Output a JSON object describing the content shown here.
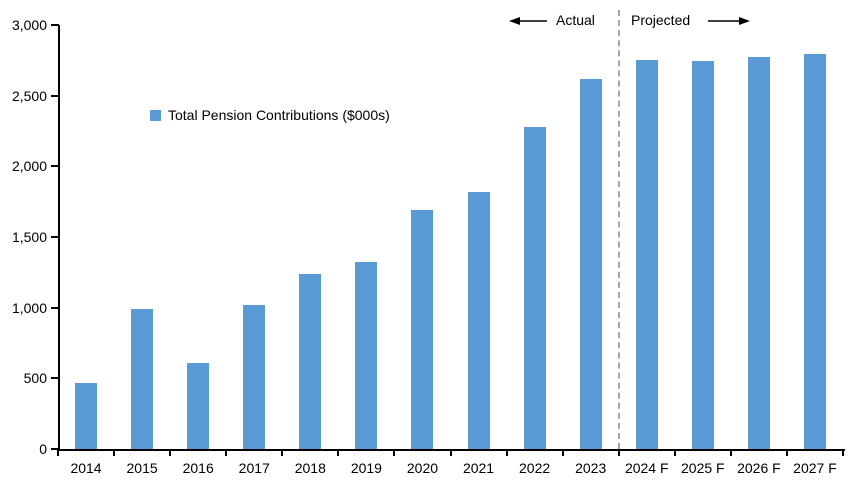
{
  "chart_data": {
    "type": "bar",
    "title": "",
    "legend": "Total Pension Contributions ($000s)",
    "categories": [
      "2014",
      "2015",
      "2016",
      "2017",
      "2018",
      "2019",
      "2020",
      "2021",
      "2022",
      "2023",
      "2024 F",
      "2025 F",
      "2026 F",
      "2027 F"
    ],
    "values": [
      470,
      990,
      610,
      1020,
      1240,
      1320,
      1690,
      1820,
      2280,
      2615,
      2755,
      2745,
      2775,
      2795
    ],
    "xlabel": "",
    "ylabel": "",
    "ylim": [
      0,
      3000
    ],
    "ytick_values": [
      0,
      500,
      1000,
      1500,
      2000,
      2500,
      3000
    ],
    "ytick_labels": [
      "0",
      "500",
      "1,000",
      "1,500",
      "2,000",
      "2,500",
      "3,000"
    ],
    "grid": false,
    "legend_position": "inside-upper-left",
    "separator_after_index": 9,
    "annotations": {
      "actual": "Actual",
      "projected": "Projected"
    }
  },
  "colors": {
    "bar": "#5B9BD5",
    "separator": "#A6A6A6",
    "axis": "#000000",
    "text": "#000000"
  }
}
